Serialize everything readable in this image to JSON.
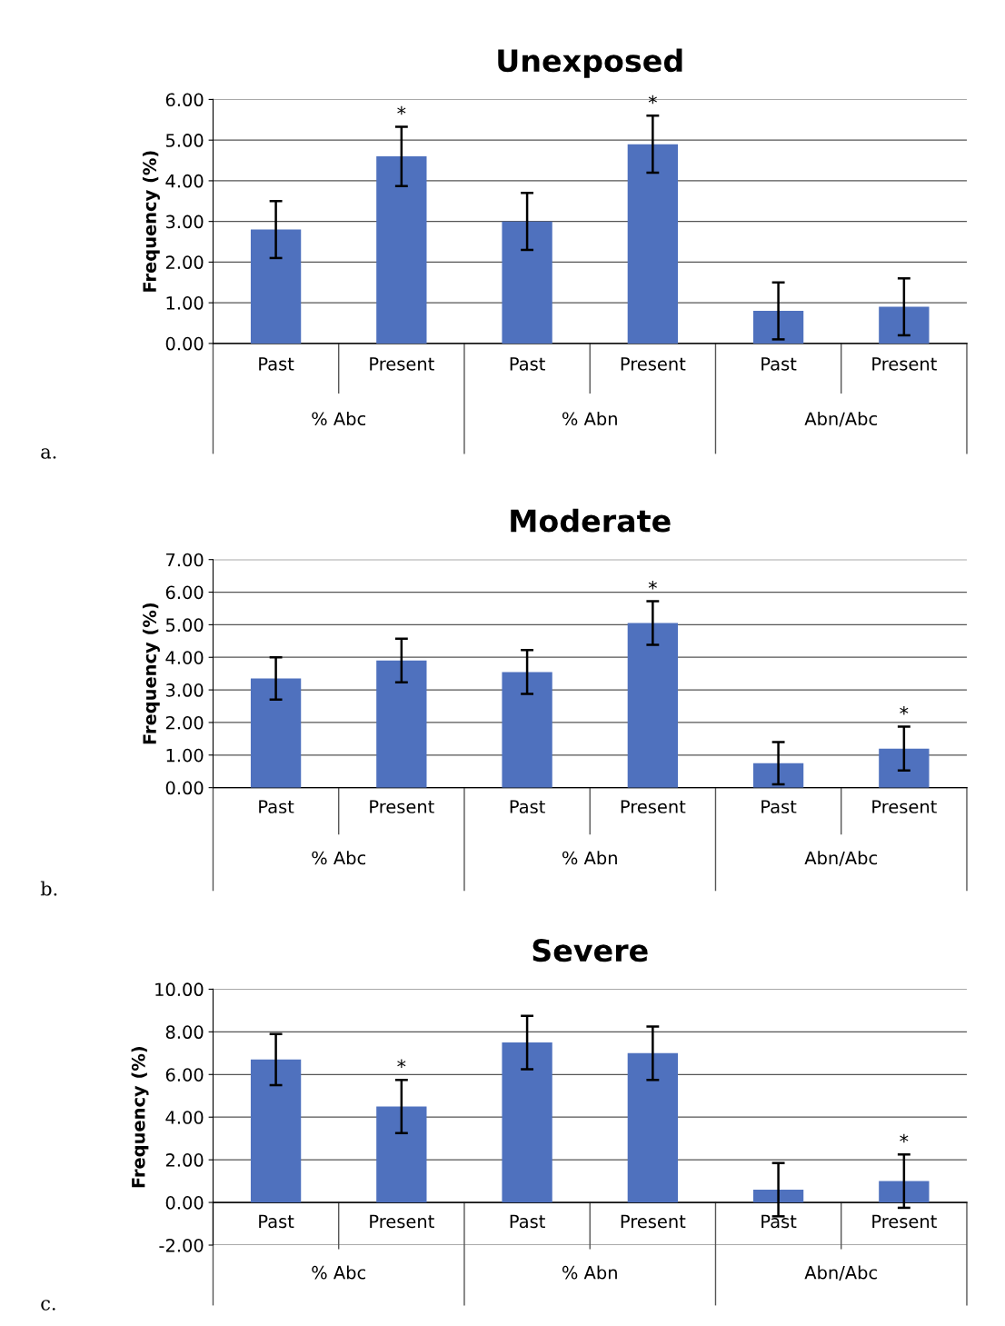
{
  "chart_data": [
    {
      "type": "bar",
      "title": "Unexposed",
      "ylabel": "Frequency (%)",
      "categories": [
        "Past",
        "Present",
        "Past",
        "Present",
        "Past",
        "Present"
      ],
      "values": [
        2.8,
        4.6,
        3.0,
        4.9,
        0.8,
        0.9
      ],
      "errors": [
        0.7,
        0.73,
        0.7,
        0.7,
        0.7,
        0.7
      ],
      "color": "#4f71be",
      "value_labels": [
        null,
        "*",
        null,
        "*",
        null,
        null
      ],
      "ylim": [
        0,
        6
      ],
      "yticks": [
        {
          "value": 0,
          "label": "0.00"
        },
        {
          "value": 1,
          "label": "1.00"
        },
        {
          "value": 2,
          "label": "2.00"
        },
        {
          "value": 3,
          "label": "3.00"
        },
        {
          "value": 4,
          "label": "4.00"
        },
        {
          "value": 5,
          "label": "5.00"
        },
        {
          "value": 6,
          "label": "6.00"
        }
      ],
      "grid": "y",
      "annotations": [
        "% Abc",
        "% Abn",
        "Abn/Abc",
        "a."
      ]
    },
    {
      "type": "bar",
      "title": "Moderate",
      "ylabel": "Frequency (%)",
      "categories": [
        "Past",
        "Present",
        "Past",
        "Present",
        "Past",
        "Present"
      ],
      "values": [
        3.35,
        3.9,
        3.55,
        5.05,
        0.75,
        1.2
      ],
      "errors": [
        0.65,
        0.67,
        0.67,
        0.67,
        0.65,
        0.67
      ],
      "color": "#4f71be",
      "value_labels": [
        null,
        null,
        null,
        "*",
        null,
        "*"
      ],
      "ylim": [
        0,
        7
      ],
      "yticks": [
        {
          "value": 0,
          "label": "0.00"
        },
        {
          "value": 1,
          "label": "1.00"
        },
        {
          "value": 2,
          "label": "2.00"
        },
        {
          "value": 3,
          "label": "3.00"
        },
        {
          "value": 4,
          "label": "4.00"
        },
        {
          "value": 5,
          "label": "5.00"
        },
        {
          "value": 6,
          "label": "6.00"
        },
        {
          "value": 7,
          "label": "7.00"
        }
      ],
      "grid": "y",
      "annotations": [
        "% Abc",
        "% Abn",
        "Abn/Abc",
        "b."
      ]
    },
    {
      "type": "bar",
      "title": "Severe",
      "ylabel": "Frequency (%)",
      "categories": [
        "Past",
        "Present",
        "Past",
        "Present",
        "Past",
        "Present"
      ],
      "values": [
        6.7,
        4.5,
        7.5,
        7.0,
        0.6,
        1.0
      ],
      "errors": [
        1.2,
        1.25,
        1.25,
        1.25,
        1.25,
        1.25
      ],
      "color": "#4f71be",
      "value_labels": [
        null,
        "*",
        null,
        null,
        null,
        "*"
      ],
      "ylim": [
        -2,
        10
      ],
      "yticks": [
        {
          "value": -2,
          "label": "-2.00"
        },
        {
          "value": 0,
          "label": "0.00"
        },
        {
          "value": 2,
          "label": "2.00"
        },
        {
          "value": 4,
          "label": "4.00"
        },
        {
          "value": 6,
          "label": "6.00"
        },
        {
          "value": 8,
          "label": "8.00"
        },
        {
          "value": 10,
          "label": "10.00"
        }
      ],
      "grid": "y",
      "annotations": [
        "% Abc",
        "% Abn",
        "Abn/Abc",
        "c."
      ]
    }
  ]
}
